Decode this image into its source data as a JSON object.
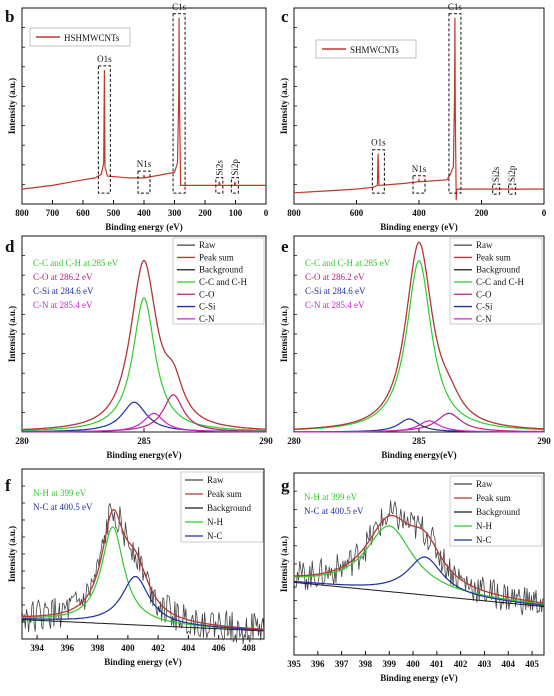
{
  "colors": {
    "raw": "#444444",
    "sum": "#b23a3a",
    "background": "#1a1a1a",
    "green": "#2ecc2e",
    "o": "#b8207a",
    "si": "#1f2f9e",
    "n": "#d020d0",
    "survey": "#c0392b"
  },
  "chart_data": [
    {
      "id": "b",
      "letter": "b",
      "type": "line",
      "xlabel": "Binding energy (eV)",
      "ylabel": "Intensity (a.u.)",
      "xlim": [
        800,
        0
      ],
      "xticks": [
        800,
        700,
        600,
        500,
        400,
        300,
        200,
        100,
        0
      ],
      "legend": "HSHMWCNTs",
      "peak_labels": [
        {
          "text": "O1s",
          "x": 530
        },
        {
          "text": "N1s",
          "x": 400
        },
        {
          "text": "C1s",
          "x": 285
        },
        {
          "text": "Si2s",
          "x": 153
        },
        {
          "text": "Si2p",
          "x": 102
        }
      ],
      "series": [
        {
          "values": [
            [
              800,
              0.08
            ],
            [
              700,
              0.1
            ],
            [
              600,
              0.13
            ],
            [
              560,
              0.14
            ],
            [
              540,
              0.16
            ],
            [
              532,
              0.22
            ],
            [
              530,
              0.72
            ],
            [
              528,
              0.2
            ],
            [
              520,
              0.15
            ],
            [
              450,
              0.14
            ],
            [
              402,
              0.14
            ],
            [
              400,
              0.155
            ],
            [
              398,
              0.14
            ],
            [
              300,
              0.17
            ],
            [
              290,
              0.22
            ],
            [
              286,
              0.6
            ],
            [
              285,
              1.0
            ],
            [
              284,
              0.6
            ],
            [
              280,
              0.1
            ],
            [
              250,
              0.1
            ],
            [
              200,
              0.1
            ],
            [
              155,
              0.1
            ],
            [
              153,
              0.12
            ],
            [
              150,
              0.1
            ],
            [
              104,
              0.1
            ],
            [
              102,
              0.12
            ],
            [
              100,
              0.1
            ],
            [
              0,
              0.1
            ]
          ]
        }
      ]
    },
    {
      "id": "c",
      "letter": "c",
      "type": "line",
      "xlabel": "Binding energy (eV)",
      "ylabel": "Intensity (a.u.)",
      "xlim": [
        800,
        0
      ],
      "xticks": [
        800,
        600,
        400,
        200,
        0
      ],
      "legend": "SHMWCNTs",
      "peak_labels": [
        {
          "text": "O1s",
          "x": 530
        },
        {
          "text": "N1s",
          "x": 400
        },
        {
          "text": "C1s",
          "x": 285
        },
        {
          "text": "Si2s",
          "x": 153
        },
        {
          "text": "Si2p",
          "x": 102
        }
      ],
      "series": [
        {
          "values": [
            [
              800,
              0.06
            ],
            [
              700,
              0.07
            ],
            [
              600,
              0.08
            ],
            [
              545,
              0.09
            ],
            [
              533,
              0.1
            ],
            [
              531,
              0.27
            ],
            [
              528,
              0.1
            ],
            [
              450,
              0.11
            ],
            [
              402,
              0.12
            ],
            [
              400,
              0.13
            ],
            [
              398,
              0.12
            ],
            [
              310,
              0.13
            ],
            [
              300,
              0.16
            ],
            [
              290,
              0.2
            ],
            [
              286,
              0.6
            ],
            [
              285,
              1.0
            ],
            [
              284,
              0.5
            ],
            [
              281,
              0.02
            ],
            [
              279,
              0.08
            ],
            [
              250,
              0.08
            ],
            [
              155,
              0.08
            ],
            [
              153,
              0.085
            ],
            [
              150,
              0.08
            ],
            [
              104,
              0.08
            ],
            [
              102,
              0.085
            ],
            [
              100,
              0.08
            ],
            [
              0,
              0.08
            ]
          ]
        }
      ]
    },
    {
      "id": "d",
      "letter": "d",
      "type": "line",
      "xlabel": "Binding energy(eV)",
      "ylabel": "Intensity (a.u.)",
      "xlim": [
        280,
        290
      ],
      "xticks": [
        280,
        285,
        290
      ],
      "annotations": [
        {
          "text": "C-C and C-H at 285 eV",
          "color": "green"
        },
        {
          "text": "C-O at 286.2 eV",
          "color": "o"
        },
        {
          "text": "C-Si at 284.6 eV",
          "color": "si"
        },
        {
          "text": "C-N at 285.4 eV",
          "color": "n"
        }
      ],
      "legend_items": [
        {
          "label": "Raw",
          "color": "raw"
        },
        {
          "label": "Peak sum",
          "color": "sum"
        },
        {
          "label": "Background",
          "color": "background"
        },
        {
          "label": "C-C and C-H",
          "color": "green"
        },
        {
          "label": "C-O",
          "color": "o"
        },
        {
          "label": "C-Si",
          "color": "si"
        },
        {
          "label": "C-N",
          "color": "n"
        }
      ],
      "model": {
        "baseline": 0.0,
        "components": [
          {
            "name": "C-C and C-H",
            "center": 285.0,
            "height": 0.72,
            "width": 0.55,
            "color": "green"
          },
          {
            "name": "C-O",
            "center": 286.2,
            "height": 0.2,
            "width": 0.5,
            "color": "o"
          },
          {
            "name": "C-Si",
            "center": 284.6,
            "height": 0.16,
            "width": 0.6,
            "color": "si"
          },
          {
            "name": "C-N",
            "center": 285.4,
            "height": 0.1,
            "width": 0.5,
            "color": "n"
          }
        ],
        "noise": 0.0
      }
    },
    {
      "id": "e",
      "letter": "e",
      "type": "line",
      "xlabel": "Binding energy(eV)",
      "ylabel": "Intensity (a.u.)",
      "xlim": [
        280,
        290
      ],
      "xticks": [
        280,
        285,
        290
      ],
      "annotations": [
        {
          "text": "C-C and C-H at 285 eV",
          "color": "green"
        },
        {
          "text": "C-O at 286.2 eV",
          "color": "o"
        },
        {
          "text": "C-Si at 284.6 eV",
          "color": "si"
        },
        {
          "text": "C-N at 285.4 eV",
          "color": "n"
        }
      ],
      "legend_items": [
        {
          "label": "Raw",
          "color": "raw"
        },
        {
          "label": "Peak sum",
          "color": "sum"
        },
        {
          "label": "Background",
          "color": "background"
        },
        {
          "label": "C-C and C-H",
          "color": "green"
        },
        {
          "label": "C-O",
          "color": "o"
        },
        {
          "label": "C-Si",
          "color": "si"
        },
        {
          "label": "C-N",
          "color": "n"
        }
      ],
      "model": {
        "baseline": 0.0,
        "components": [
          {
            "name": "C-C and C-H",
            "center": 285.0,
            "height": 0.92,
            "width": 0.6,
            "color": "green"
          },
          {
            "name": "C-O",
            "center": 286.2,
            "height": 0.1,
            "width": 0.6,
            "color": "o"
          },
          {
            "name": "C-Si",
            "center": 284.6,
            "height": 0.07,
            "width": 0.5,
            "color": "si"
          },
          {
            "name": "C-N",
            "center": 285.4,
            "height": 0.06,
            "width": 0.5,
            "color": "n"
          }
        ],
        "noise": 0.0
      }
    },
    {
      "id": "f",
      "letter": "f",
      "type": "line",
      "xlabel": "Binding energy (eV)",
      "ylabel": "Intensity (a.u.)",
      "xlim": [
        393,
        409
      ],
      "xticks": [
        394,
        396,
        398,
        400,
        402,
        404,
        406,
        408
      ],
      "annotations": [
        {
          "text": "N-H at 399 eV",
          "color": "green"
        },
        {
          "text": "N-C at 400.5 eV",
          "color": "si"
        }
      ],
      "legend_items": [
        {
          "label": "Raw",
          "color": "raw"
        },
        {
          "label": "Peak sum",
          "color": "sum"
        },
        {
          "label": "Background",
          "color": "background"
        },
        {
          "label": "N-H",
          "color": "green"
        },
        {
          "label": "N-C",
          "color": "si"
        }
      ],
      "model": {
        "baseline_line": [
          [
            393,
            0.12
          ],
          [
            409,
            0.05
          ]
        ],
        "components": [
          {
            "name": "N-H",
            "center": 399.0,
            "height": 0.6,
            "width": 0.9,
            "color": "green"
          },
          {
            "name": "N-C",
            "center": 400.5,
            "height": 0.3,
            "width": 1.1,
            "color": "si"
          }
        ],
        "noise": 0.1
      }
    },
    {
      "id": "g",
      "letter": "g",
      "type": "line",
      "xlabel": "Binding energy (eV)",
      "ylabel": "Intensity (a.u.)",
      "xlim": [
        395,
        405.5
      ],
      "xticks": [
        395,
        396,
        397,
        398,
        399,
        400,
        401,
        402,
        403,
        404,
        405
      ],
      "annotations": [
        {
          "text": "N-H at 399 eV",
          "color": "green"
        },
        {
          "text": "N-C at 400.5 eV",
          "color": "si"
        }
      ],
      "legend_items": [
        {
          "label": "Raw",
          "color": "raw"
        },
        {
          "label": "Peak sum",
          "color": "sum"
        },
        {
          "label": "Background",
          "color": "background"
        },
        {
          "label": "N-H",
          "color": "green"
        },
        {
          "label": "N-C",
          "color": "si"
        }
      ],
      "model": {
        "baseline_line": [
          [
            395,
            0.42
          ],
          [
            405.5,
            0.28
          ]
        ],
        "components": [
          {
            "name": "N-H",
            "center": 399.0,
            "height": 0.38,
            "width": 1.2,
            "color": "green"
          },
          {
            "name": "N-C",
            "center": 400.5,
            "height": 0.22,
            "width": 0.9,
            "color": "si"
          }
        ],
        "noise": 0.09
      }
    }
  ]
}
